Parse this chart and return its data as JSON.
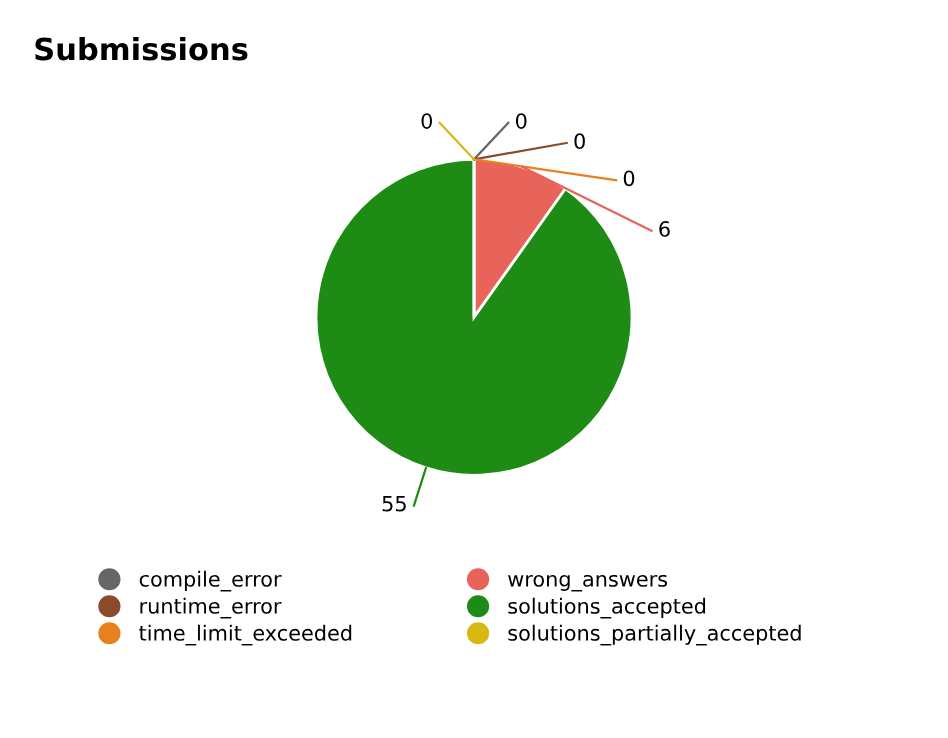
{
  "chart_data": {
    "type": "pie",
    "title": "Submissions",
    "categories": [
      "compile_error",
      "runtime_error",
      "time_limit_exceeded",
      "wrong_answers",
      "solutions_accepted",
      "solutions_partially_accepted"
    ],
    "values": [
      0,
      0,
      0,
      6,
      55,
      0
    ],
    "colors": [
      "#666666",
      "#8b4a2b",
      "#e8801e",
      "#e8635a",
      "#1e8c14",
      "#d9b80f"
    ],
    "value_labels": [
      "0",
      "0",
      "0",
      "6",
      "55",
      "0"
    ],
    "legend": "bottom"
  }
}
